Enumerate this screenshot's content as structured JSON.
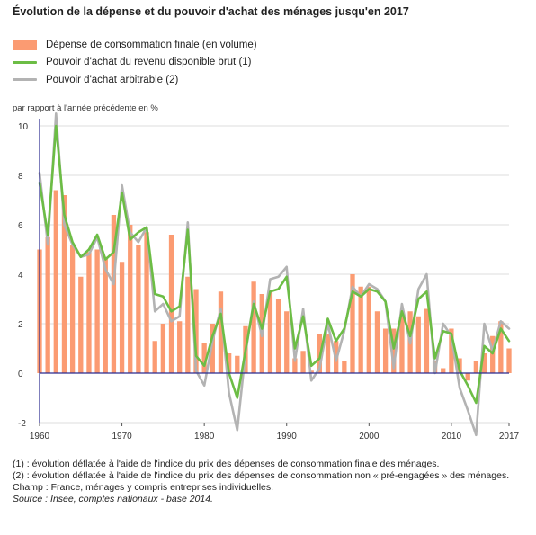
{
  "title": "Évolution de la dépense et du pouvoir d'achat des ménages jusqu'en 2017",
  "unit_label": "par rapport à l'année précédente en %",
  "notes": [
    "(1) : évolution déflatée à l'aide de l'indice du prix des dépenses de consommation finale des ménages.",
    "(2) : évolution déflatée à l'aide de l'indice du prix des dépenses de consommation non « pré-engagées » des ménages.",
    "Champ : France, ménages y compris entreprises individuelles."
  ],
  "source": "Source : Insee, comptes nationaux - base 2014.",
  "colors": {
    "bars": "#fb9b72",
    "green": "#6cbd45",
    "gray": "#b3b3b3",
    "axis": "#2b2b8f",
    "grid": "#dddddd"
  },
  "chart_data": {
    "type": "bar",
    "xlim": [
      1960,
      2017
    ],
    "ylim": [
      -2,
      10
    ],
    "yticks": [
      -2,
      0,
      2,
      4,
      6,
      8,
      10
    ],
    "xticks": [
      1960,
      1970,
      1980,
      1990,
      2000,
      2010,
      2017
    ],
    "grid": true,
    "legend": "top-left",
    "x": [
      1960,
      1961,
      1962,
      1963,
      1964,
      1965,
      1966,
      1967,
      1968,
      1969,
      1970,
      1971,
      1972,
      1973,
      1974,
      1975,
      1976,
      1977,
      1978,
      1979,
      1980,
      1981,
      1982,
      1983,
      1984,
      1985,
      1986,
      1987,
      1988,
      1989,
      1990,
      1991,
      1992,
      1993,
      1994,
      1995,
      1996,
      1997,
      1998,
      1999,
      2000,
      2001,
      2002,
      2003,
      2004,
      2005,
      2006,
      2007,
      2008,
      2009,
      2010,
      2011,
      2012,
      2013,
      2014,
      2015,
      2016,
      2017
    ],
    "series": [
      {
        "name": "Dépense de consommation finale (en volume)",
        "kind": "bar",
        "values": [
          5.0,
          5.5,
          7.4,
          7.2,
          5.2,
          3.9,
          4.9,
          5.0,
          4.7,
          6.4,
          4.5,
          6.0,
          5.2,
          5.7,
          1.3,
          2.0,
          5.6,
          2.1,
          3.9,
          3.4,
          1.2,
          2.0,
          3.3,
          0.8,
          0.7,
          1.9,
          3.7,
          3.2,
          3.3,
          3.0,
          2.5,
          0.6,
          0.9,
          0.1,
          1.6,
          1.6,
          1.3,
          0.5,
          4.0,
          3.5,
          3.5,
          2.5,
          1.8,
          1.8,
          2.3,
          2.5,
          2.3,
          2.6,
          0.5,
          0.2,
          1.8,
          0.6,
          -0.3,
          0.5,
          0.8,
          1.5,
          2.1,
          1.0
        ]
      },
      {
        "name": "Pouvoir d'achat du revenu disponible brut (1)",
        "kind": "line",
        "values": [
          7.7,
          5.6,
          10.0,
          6.4,
          5.3,
          4.7,
          5.0,
          5.6,
          4.6,
          4.9,
          7.3,
          5.4,
          5.7,
          5.9,
          3.2,
          3.1,
          2.5,
          2.7,
          5.8,
          0.7,
          0.3,
          1.5,
          2.4,
          0.0,
          -1.0,
          0.9,
          2.8,
          1.8,
          3.3,
          3.4,
          3.9,
          1.0,
          2.3,
          0.3,
          0.6,
          2.2,
          1.3,
          1.8,
          3.3,
          3.1,
          3.4,
          3.3,
          2.9,
          1.0,
          2.5,
          1.5,
          3.0,
          3.3,
          0.6,
          1.7,
          1.6,
          0.1,
          -0.5,
          -1.2,
          1.1,
          0.8,
          1.8,
          1.3
        ]
      },
      {
        "name": "Pouvoir d'achat arbitrable (2)",
        "kind": "line",
        "values": [
          8.1,
          5.2,
          10.5,
          6.0,
          5.2,
          4.7,
          4.8,
          5.5,
          4.2,
          3.6,
          7.6,
          5.7,
          5.3,
          5.9,
          2.5,
          2.8,
          2.1,
          2.3,
          6.1,
          0.1,
          -0.5,
          1.3,
          2.6,
          -0.8,
          -2.3,
          0.8,
          2.9,
          1.5,
          3.8,
          3.9,
          4.3,
          0.5,
          2.6,
          -0.3,
          0.2,
          2.0,
          0.5,
          1.7,
          3.5,
          3.1,
          3.6,
          3.4,
          2.9,
          0.2,
          2.8,
          1.2,
          3.4,
          4.0,
          0.0,
          2.0,
          1.5,
          -0.6,
          -1.5,
          -2.5,
          2.0,
          0.9,
          2.1,
          1.8
        ]
      }
    ]
  }
}
